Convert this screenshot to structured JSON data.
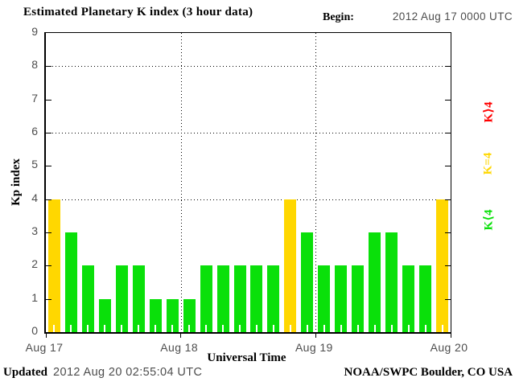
{
  "header": {
    "begin_label": "Begin:",
    "begin_value": "2012 Aug 17 0000 UTC"
  },
  "chart_data": {
    "type": "bar",
    "title": "Estimated Planetary K index (3 hour data)",
    "xlabel": "Universal Time",
    "ylabel": "Kp index",
    "ylim": [
      0,
      9
    ],
    "yticks": [
      0,
      1,
      2,
      3,
      4,
      5,
      6,
      7,
      8,
      9
    ],
    "grid_y": [
      4,
      6,
      8
    ],
    "x_day_labels": [
      "Aug 17",
      "Aug 18",
      "Aug 19",
      "Aug 20"
    ],
    "bars_per_day": 8,
    "bar_interval_hours": 3,
    "values": [
      4,
      3,
      2,
      1,
      2,
      2,
      1,
      1,
      1,
      2,
      2,
      2,
      2,
      2,
      4,
      3,
      2,
      2,
      2,
      3,
      3,
      2,
      2,
      4
    ],
    "colors": {
      "k_lt_4": "#0ae00a",
      "k_eq_4": "#ffd700",
      "k_gt_4": "#ff0000"
    },
    "color_rule": "green K<4, yellow K=4, red K>4",
    "grid": "dotted horizontal at 4,6,8 and dotted vertical at day boundaries",
    "legend_position": "right, rotated"
  },
  "legend": [
    {
      "label": "K⟩4",
      "color": "#ff0000"
    },
    {
      "label": "K=4",
      "color": "#ffd700"
    },
    {
      "label": "K⟨4",
      "color": "#0ae00a"
    }
  ],
  "footer": {
    "updated_label": "Updated",
    "updated_value": "2012 Aug 20 02:55:04 UTC",
    "source": "NOAA/SWPC Boulder, CO USA"
  }
}
